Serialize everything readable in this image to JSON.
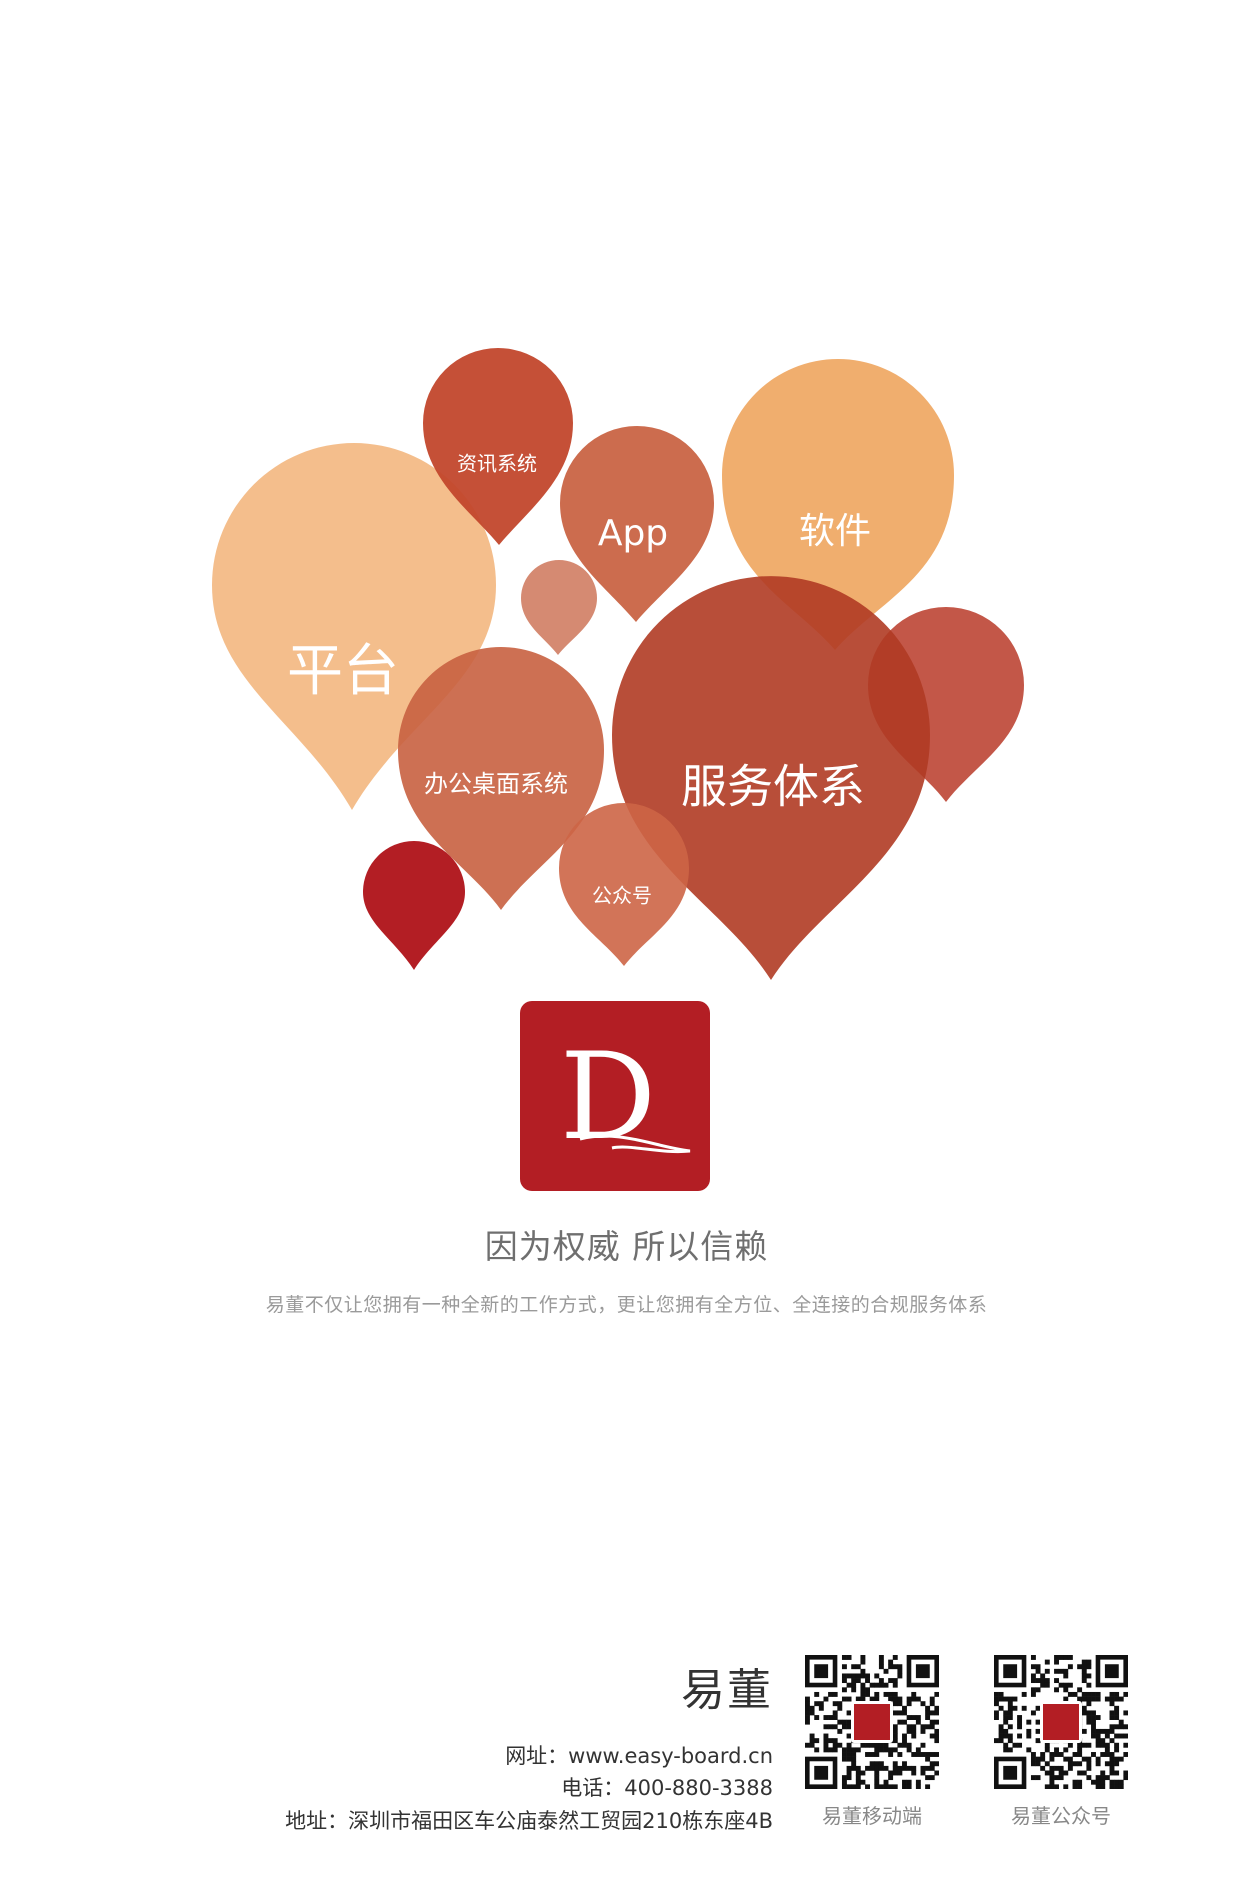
{
  "colors": {
    "background": "#ffffff",
    "brand_red": "#b31e24",
    "peach": "#f2b57c",
    "orange": "#eea55e",
    "terracotta": "#c86140",
    "rust": "#b13e25"
  },
  "balloons": {
    "zixun": "资讯系统",
    "app": "App",
    "ruanjian": "软件",
    "pingtai": "平台",
    "bangong": "办公桌面系统",
    "fuwu": "服务体系",
    "gongzhonghao": "公众号"
  },
  "logo": {
    "letter": "D",
    "icon": "dq-monogram-icon"
  },
  "tagline": "因为权威 所以信赖",
  "subline": "易董不仅让您拥有一种全新的工作方式，更让您拥有全方位、全连接的合规服务体系",
  "footer": {
    "brand": "易董",
    "website": "网址：www.easy-board.cn",
    "phone": "电话：400-880-3388",
    "address": "地址：深圳市福田区车公庙泰然工贸园210栋东座4B",
    "qr_mobile_caption": "易董移动端",
    "qr_wechat_caption": "易董公众号"
  }
}
